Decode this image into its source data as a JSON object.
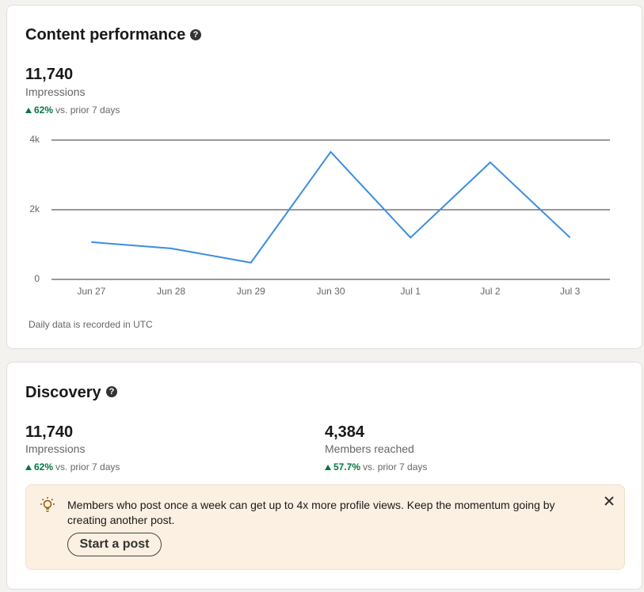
{
  "content_performance": {
    "title": "Content performance",
    "metric": "11,740",
    "metric_label": "Impressions",
    "change": "62%",
    "change_note": "vs. prior 7 days",
    "footnote": "Daily data is recorded in UTC"
  },
  "chart_data": {
    "type": "line",
    "categories": [
      "Jun 27",
      "Jun 28",
      "Jun 29",
      "Jun 30",
      "Jul 1",
      "Jul 2",
      "Jul 3"
    ],
    "values": [
      1070,
      890,
      480,
      3660,
      1200,
      3360,
      1200
    ],
    "color": "#3b8de0",
    "ylim": [
      0,
      4000
    ],
    "yticks": [
      0,
      {
        "value": 2000,
        "label": "2k"
      },
      {
        "value": 4000,
        "label": "4k"
      }
    ],
    "grid": true
  },
  "discovery": {
    "title": "Discovery",
    "metrics": [
      {
        "value": "11,740",
        "label": "Impressions",
        "change": "62%",
        "change_note": "vs. prior 7 days"
      },
      {
        "value": "4,384",
        "label": "Members reached",
        "change": "57.7%",
        "change_note": "vs. prior 7 days"
      }
    ],
    "banner": {
      "text": "Members who post once a week can get up to 4x more profile views. Keep the momentum going by creating another post.",
      "button": "Start a post"
    }
  }
}
